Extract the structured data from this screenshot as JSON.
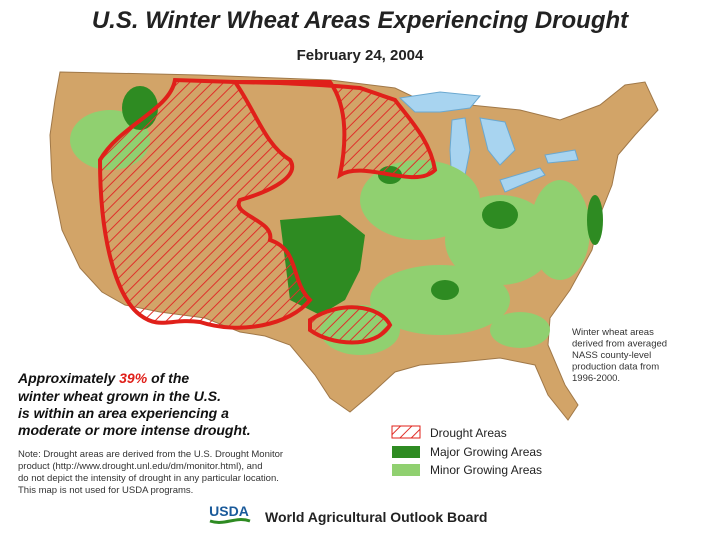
{
  "header": {
    "title": "U.S. Winter Wheat Areas Experiencing Drought",
    "date": "February 24, 2004"
  },
  "summary": {
    "lead": "Approximately",
    "highlight": "39%",
    "tail": "of the",
    "lines": [
      "winter wheat grown in the U.S.",
      "is within an area experiencing a",
      "moderate or more intense drought."
    ]
  },
  "note": {
    "lines": [
      "Note:  Drought areas are derived from the U.S. Drought Monitor",
      "product (http://www.drought.unl.edu/dm/monitor.html), and",
      "do not depict the intensity of drought in any particular location.",
      "This map is not used for USDA programs."
    ]
  },
  "source": {
    "lines": [
      "Winter wheat areas",
      "derived from averaged",
      "NASS county-level",
      "production data from",
      "1996-2000."
    ]
  },
  "legend": {
    "items": [
      "Drought Areas",
      "Major Growing Areas",
      "Minor Growing Areas"
    ]
  },
  "footer": {
    "logo": "USDA",
    "agency": "World Agricultural Outlook Board"
  }
}
